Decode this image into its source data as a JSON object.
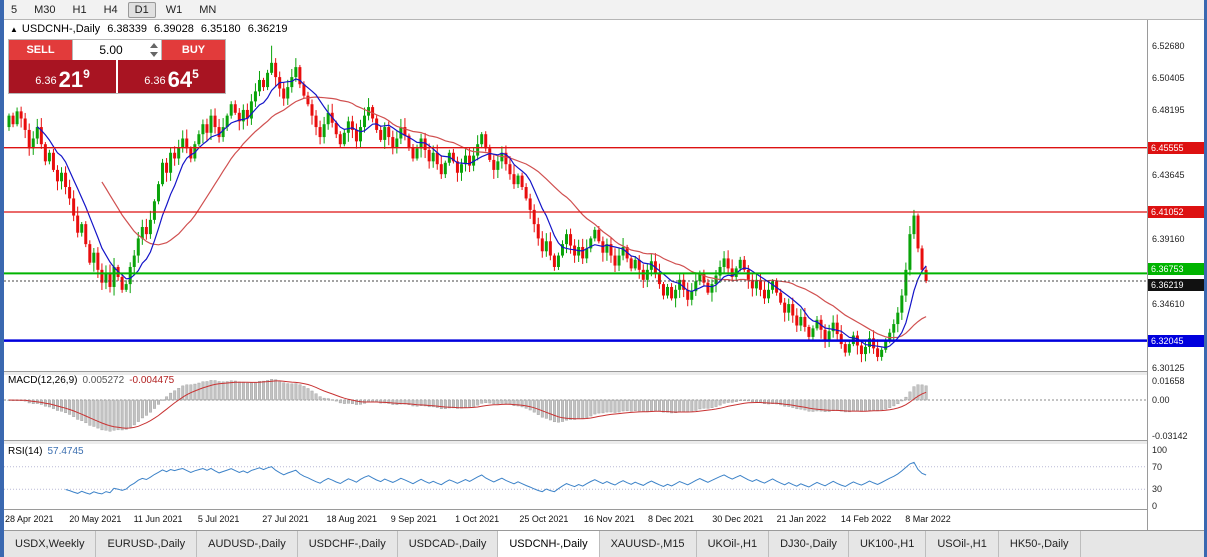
{
  "toolbar": {
    "items": [
      {
        "label": "5",
        "active": false
      },
      {
        "label": "M30",
        "active": false
      },
      {
        "label": "H1",
        "active": false
      },
      {
        "label": "H4",
        "active": false
      },
      {
        "label": "D1",
        "active": true
      },
      {
        "label": "W1",
        "active": false
      },
      {
        "label": "MN",
        "active": false
      }
    ]
  },
  "quote_panel": {
    "collapse_icon": "▲",
    "symbol": "USDCNH-,Daily",
    "ohlc": {
      "open": "6.38339",
      "high": "6.39028",
      "low": "6.35180",
      "close": "6.36219"
    },
    "sell_label": "SELL",
    "buy_label": "BUY",
    "volume": "5.00",
    "bid": {
      "prefix": "6.36",
      "big": "21",
      "sup": "9"
    },
    "ask": {
      "prefix": "6.36",
      "big": "64",
      "sup": "5"
    }
  },
  "price_axis": {
    "labels": [
      "6.52680",
      "6.50405",
      "6.48195",
      "6.43645",
      "6.39160",
      "6.34610",
      "6.30125"
    ],
    "badges": [
      {
        "text": "6.45555",
        "color": "#dd1111",
        "dy": 0
      },
      {
        "text": "6.41052",
        "color": "#dd1111",
        "dy": 0
      },
      {
        "text": "6.36753",
        "color": "#00b400",
        "dy": -4
      },
      {
        "text": "6.36219",
        "color": "#111111",
        "dy": 4
      },
      {
        "text": "6.32045",
        "color": "#0000dd",
        "dy": 0
      }
    ]
  },
  "levels": [
    {
      "price": 6.45555,
      "color": "#dd1111",
      "width": 1.3
    },
    {
      "price": 6.41052,
      "color": "#dd1111",
      "width": 1.3
    },
    {
      "price": 6.36753,
      "color": "#00b400",
      "width": 2
    },
    {
      "price": 6.32045,
      "color": "#0000dd",
      "width": 2.5
    }
  ],
  "current_price": {
    "value": 6.36219,
    "label": "6.36219"
  },
  "macd_panel": {
    "title": "MACD(12,26,9)",
    "main_value": "0.005272",
    "signal_value": "-0.004475",
    "axis_labels": [
      "0.01658",
      "0.00",
      "-0.03142"
    ]
  },
  "rsi_panel": {
    "title": "RSI(14)",
    "value": "57.4745",
    "axis_labels": [
      "100",
      "70",
      "30",
      "0"
    ],
    "levels": [
      70,
      30
    ]
  },
  "date_axis": {
    "labels": [
      "28 Apr 2021",
      "20 May 2021",
      "11 Jun 2021",
      "5 Jul 2021",
      "27 Jul 2021",
      "18 Aug 2021",
      "9 Sep 2021",
      "1 Oct 2021",
      "25 Oct 2021",
      "16 Nov 2021",
      "8 Dec 2021",
      "30 Dec 2021",
      "21 Jan 2022",
      "14 Feb 2022",
      "8 Mar 2022"
    ]
  },
  "tabs": [
    {
      "label": "USDX,Weekly",
      "active": false
    },
    {
      "label": "EURUSD-,Daily",
      "active": false
    },
    {
      "label": "AUDUSD-,Daily",
      "active": false
    },
    {
      "label": "USDCHF-,Daily",
      "active": false
    },
    {
      "label": "USDCAD-,Daily",
      "active": false
    },
    {
      "label": "USDCNH-,Daily",
      "active": true
    },
    {
      "label": "XAUUSD-,M15",
      "active": false
    },
    {
      "label": "UKOil-,H1",
      "active": false
    },
    {
      "label": "DJ30-,Daily",
      "active": false
    },
    {
      "label": "UK100-,H1",
      "active": false
    },
    {
      "label": "USOil-,H1",
      "active": false
    },
    {
      "label": "HK50-,Daily",
      "active": false
    }
  ],
  "chart_data": {
    "type": "candlestick",
    "symbol": "USDCNH-",
    "timeframe": "Daily",
    "title": "USDCNH-,Daily",
    "x_range": [
      "28 Apr 2021",
      "18 Mar 2022"
    ],
    "y_range": [
      6.2998,
      6.545
    ],
    "up_color": "#0aa30a",
    "down_color": "#e80d0d",
    "ma_fast_color": "#1414c8",
    "ma_slow_color": "#d05050",
    "ma_fast_period": 8,
    "ma_slow_period": 24,
    "first_open": 6.47,
    "closes": [
      6.478,
      6.472,
      6.481,
      6.476,
      6.468,
      6.455,
      6.462,
      6.47,
      6.458,
      6.446,
      6.452,
      6.44,
      6.432,
      6.438,
      6.428,
      6.42,
      6.408,
      6.396,
      6.402,
      6.388,
      6.375,
      6.382,
      6.37,
      6.361,
      6.368,
      6.358,
      6.372,
      6.365,
      6.356,
      6.36,
      6.372,
      6.38,
      6.392,
      6.4,
      6.395,
      6.405,
      6.418,
      6.43,
      6.445,
      6.438,
      6.452,
      6.448,
      6.456,
      6.462,
      6.455,
      6.448,
      6.458,
      6.465,
      6.472,
      6.466,
      6.478,
      6.47,
      6.463,
      6.47,
      6.478,
      6.486,
      6.48,
      6.474,
      6.482,
      6.476,
      6.488,
      6.495,
      6.503,
      6.498,
      6.508,
      6.515,
      6.505,
      6.497,
      6.49,
      6.498,
      6.505,
      6.512,
      6.5,
      6.492,
      6.486,
      6.478,
      6.47,
      6.463,
      6.472,
      6.48,
      6.473,
      6.465,
      6.458,
      6.466,
      6.474,
      6.468,
      6.46,
      6.47,
      6.478,
      6.484,
      6.476,
      6.468,
      6.461,
      6.47,
      6.463,
      6.456,
      6.462,
      6.47,
      6.464,
      6.456,
      6.448,
      6.455,
      6.462,
      6.454,
      6.446,
      6.452,
      6.444,
      6.437,
      6.445,
      6.452,
      6.446,
      6.438,
      6.444,
      6.45,
      6.443,
      6.45,
      6.458,
      6.465,
      6.455,
      6.447,
      6.44,
      6.446,
      6.452,
      6.444,
      6.437,
      6.43,
      6.436,
      6.428,
      6.42,
      6.412,
      6.402,
      6.392,
      6.383,
      6.39,
      6.38,
      6.372,
      6.38,
      6.388,
      6.395,
      6.387,
      6.38,
      6.386,
      6.378,
      6.385,
      6.392,
      6.398,
      6.39,
      6.382,
      6.388,
      6.38,
      6.373,
      6.38,
      6.386,
      6.378,
      6.371,
      6.377,
      6.37,
      6.363,
      6.37,
      6.376,
      6.368,
      6.36,
      6.352,
      6.358,
      6.35,
      6.356,
      6.363,
      6.356,
      6.349,
      6.355,
      6.362,
      6.368,
      6.361,
      6.354,
      6.36,
      6.366,
      6.372,
      6.378,
      6.371,
      6.365,
      6.371,
      6.377,
      6.37,
      6.363,
      6.357,
      6.363,
      6.356,
      6.35,
      6.356,
      6.362,
      6.354,
      6.347,
      6.34,
      6.346,
      6.338,
      6.331,
      6.337,
      6.33,
      6.323,
      6.329,
      6.335,
      6.328,
      6.321,
      6.327,
      6.333,
      6.325,
      6.318,
      6.312,
      6.318,
      6.324,
      6.317,
      6.311,
      6.316,
      6.322,
      6.315,
      6.309,
      6.314,
      6.32,
      6.326,
      6.332,
      6.34,
      6.352,
      6.37,
      6.395,
      6.408,
      6.385,
      6.37,
      6.36219
    ],
    "wick_overrides": {
      "26": {
        "l": 6.352
      },
      "65": {
        "h": 6.527
      },
      "215": {
        "l": 6.306
      },
      "224": {
        "h": 6.412
      }
    },
    "indicators": {
      "macd": {
        "fast": 12,
        "slow": 26,
        "signal": 9,
        "last_main": 0.005272,
        "last_signal": -0.004475
      },
      "rsi": {
        "period": 14,
        "last": 57.4745
      }
    }
  }
}
